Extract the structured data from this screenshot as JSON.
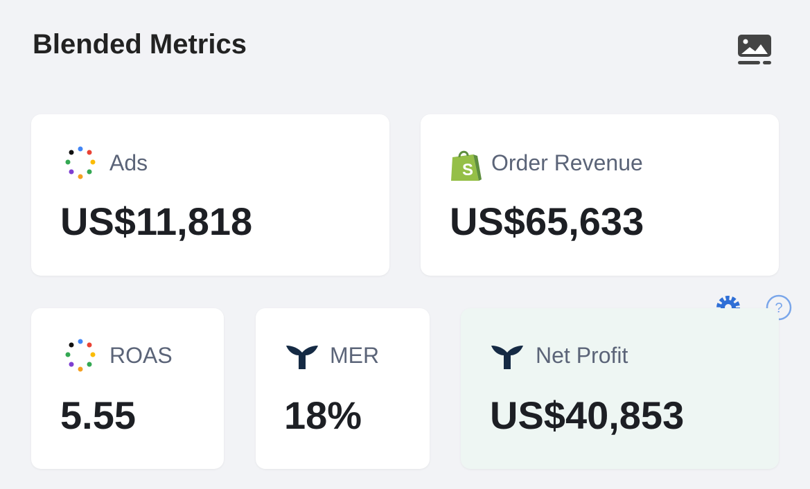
{
  "header": {
    "title": "Blended Metrics"
  },
  "cards": [
    {
      "label": "Ads",
      "value": "US$11,818"
    },
    {
      "label": "Order Revenue",
      "value": "US$65,633"
    },
    {
      "label": "ROAS",
      "value": "5.55"
    },
    {
      "label": "MER",
      "value": "18%"
    },
    {
      "label": "Net Profit",
      "value": "US$40,853"
    }
  ]
}
